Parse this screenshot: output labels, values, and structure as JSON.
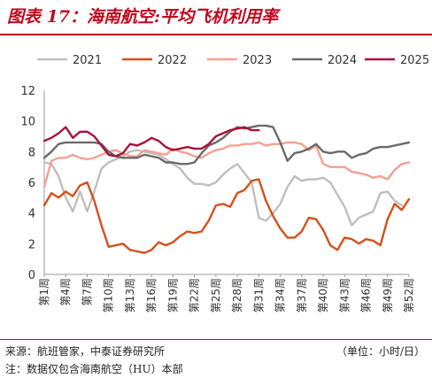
{
  "header": {
    "title": "图表 17：海南航空:平均飞机利用率"
  },
  "footer": {
    "source": "来源：航班管家，中泰证券研究所",
    "unit": "（单位：小时/日）",
    "note": "注：数据仅包含海南航空（HU）本部"
  },
  "chart_data": {
    "type": "line",
    "ylim": [
      0,
      12
    ],
    "yticks": [
      0,
      2,
      4,
      6,
      8,
      10,
      12
    ],
    "legend_position": "top",
    "grid": false,
    "x": [
      1,
      2,
      3,
      4,
      5,
      6,
      7,
      8,
      9,
      10,
      11,
      12,
      13,
      14,
      15,
      16,
      17,
      18,
      19,
      20,
      21,
      22,
      23,
      24,
      25,
      26,
      27,
      28,
      29,
      30,
      31,
      32,
      33,
      34,
      35,
      36,
      37,
      38,
      39,
      40,
      41,
      42,
      43,
      44,
      45,
      46,
      47,
      48,
      49,
      50,
      51,
      52
    ],
    "xtick_labels": [
      "第1周",
      "第4周",
      "第7周",
      "第10周",
      "第13周",
      "第16周",
      "第19周",
      "第22周",
      "第25周",
      "第28周",
      "第31周",
      "第34周",
      "第37周",
      "第40周",
      "第43周",
      "第46周",
      "第49周",
      "第52周"
    ],
    "xtick_positions": [
      1,
      4,
      7,
      10,
      13,
      16,
      19,
      22,
      25,
      28,
      31,
      34,
      37,
      40,
      43,
      46,
      49,
      52
    ],
    "series": [
      {
        "name": "2021",
        "color": "#bfbfbf",
        "values": [
          7.3,
          7.2,
          6.4,
          5.0,
          4.1,
          5.4,
          4.1,
          5.4,
          6.9,
          7.3,
          7.5,
          7.7,
          8.0,
          8.1,
          8.0,
          7.9,
          7.8,
          7.5,
          7.2,
          6.9,
          6.3,
          5.9,
          5.9,
          5.8,
          6.0,
          6.5,
          6.9,
          7.2,
          6.6,
          6.0,
          3.7,
          3.5,
          4.0,
          4.6,
          5.7,
          6.4,
          6.1,
          6.2,
          6.2,
          6.3,
          6.0,
          5.2,
          4.4,
          3.2,
          3.7,
          3.9,
          4.1,
          5.3,
          5.4,
          4.8,
          4.5,
          null
        ]
      },
      {
        "name": "2022",
        "color": "#d5501b",
        "values": [
          4.5,
          5.3,
          5.0,
          5.4,
          5.1,
          5.8,
          6.0,
          4.8,
          3.2,
          1.8,
          1.9,
          2.0,
          1.6,
          1.5,
          1.4,
          1.6,
          2.1,
          1.9,
          2.1,
          2.5,
          2.8,
          2.7,
          2.8,
          3.5,
          4.5,
          4.6,
          4.4,
          5.3,
          5.5,
          6.1,
          6.2,
          4.8,
          3.8,
          3.0,
          2.4,
          2.4,
          2.8,
          3.7,
          3.6,
          2.9,
          1.9,
          1.6,
          2.4,
          2.3,
          2.0,
          2.3,
          2.2,
          1.9,
          3.6,
          4.6,
          4.2,
          4.9
        ]
      },
      {
        "name": "2023",
        "color": "#f4a091",
        "values": [
          5.7,
          7.4,
          7.6,
          7.6,
          7.8,
          7.6,
          7.5,
          7.6,
          7.8,
          8.0,
          8.1,
          7.9,
          7.7,
          7.7,
          8.1,
          8.0,
          7.9,
          7.8,
          8.2,
          8.0,
          7.9,
          7.7,
          7.6,
          7.9,
          8.1,
          8.2,
          8.4,
          8.4,
          8.5,
          8.5,
          8.6,
          8.4,
          8.5,
          8.5,
          8.6,
          8.6,
          8.5,
          8.1,
          8.4,
          7.2,
          7.0,
          7.0,
          7.0,
          6.7,
          6.6,
          6.5,
          6.3,
          6.4,
          6.2,
          6.8,
          7.2,
          7.3
        ]
      },
      {
        "name": "2024",
        "color": "#6a6a6a",
        "values": [
          7.6,
          8.0,
          8.5,
          8.6,
          8.6,
          8.6,
          8.6,
          8.6,
          8.5,
          8.0,
          7.7,
          7.6,
          7.6,
          7.6,
          7.8,
          7.7,
          7.6,
          7.3,
          7.3,
          7.2,
          7.2,
          7.3,
          7.9,
          8.4,
          8.6,
          8.9,
          9.3,
          9.6,
          9.5,
          9.6,
          9.7,
          9.7,
          9.6,
          8.6,
          7.4,
          7.9,
          8.0,
          8.2,
          8.5,
          8.0,
          7.9,
          8.0,
          8.0,
          7.6,
          7.8,
          7.9,
          8.2,
          8.3,
          8.3,
          8.4,
          8.5,
          8.6
        ]
      },
      {
        "name": "2025",
        "color": "#a8123a",
        "values": [
          8.7,
          8.9,
          9.2,
          9.6,
          8.9,
          9.3,
          9.3,
          9.0,
          8.4,
          7.8,
          7.7,
          7.9,
          8.5,
          8.4,
          8.6,
          8.9,
          8.7,
          8.3,
          8.1,
          8.2,
          8.3,
          8.2,
          8.2,
          8.5,
          9.0,
          9.2,
          9.4,
          9.5,
          9.6,
          9.4,
          9.4,
          null,
          null,
          null,
          null,
          null,
          null,
          null,
          null,
          null,
          null,
          null,
          null,
          null,
          null,
          null,
          null,
          null,
          null,
          null,
          null,
          null
        ]
      }
    ]
  }
}
